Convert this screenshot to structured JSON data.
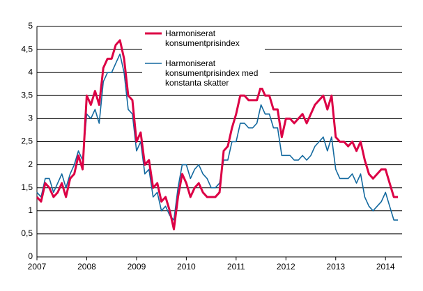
{
  "chart_data": {
    "type": "line",
    "x": [
      2007,
      2007.083,
      2007.167,
      2007.25,
      2007.333,
      2007.417,
      2007.5,
      2007.583,
      2007.667,
      2007.75,
      2007.833,
      2007.917,
      2008,
      2008.083,
      2008.167,
      2008.25,
      2008.333,
      2008.417,
      2008.5,
      2008.583,
      2008.667,
      2008.75,
      2008.833,
      2008.917,
      2009,
      2009.083,
      2009.167,
      2009.25,
      2009.333,
      2009.417,
      2009.5,
      2009.583,
      2009.667,
      2009.75,
      2009.833,
      2009.917,
      2010,
      2010.083,
      2010.167,
      2010.25,
      2010.333,
      2010.417,
      2010.5,
      2010.583,
      2010.667,
      2010.75,
      2010.833,
      2010.917,
      2011,
      2011.083,
      2011.167,
      2011.25,
      2011.333,
      2011.417,
      2011.5,
      2011.583,
      2011.667,
      2011.75,
      2011.833,
      2011.917,
      2012,
      2012.083,
      2012.167,
      2012.25,
      2012.333,
      2012.417,
      2012.5,
      2012.583,
      2012.667,
      2012.75,
      2012.833,
      2012.917,
      2013,
      2013.083,
      2013.167,
      2013.25,
      2013.333,
      2013.417,
      2013.5,
      2013.583,
      2013.667,
      2013.75,
      2013.833,
      2013.917,
      2014,
      2014.083,
      2014.167,
      2014.25
    ],
    "series": [
      {
        "name": "Harmoniserat konsumentprisindex",
        "color": "#dc0045",
        "values": [
          1.3,
          1.2,
          1.6,
          1.5,
          1.3,
          1.4,
          1.6,
          1.3,
          1.7,
          1.8,
          2.2,
          1.9,
          3.5,
          3.3,
          3.6,
          3.3,
          4.1,
          4.3,
          4.3,
          4.6,
          4.7,
          4.3,
          3.5,
          3.4,
          2.5,
          2.7,
          2.0,
          2.1,
          1.5,
          1.6,
          1.2,
          1.3,
          1.0,
          0.6,
          1.3,
          1.8,
          1.6,
          1.3,
          1.5,
          1.6,
          1.4,
          1.3,
          1.3,
          1.3,
          1.4,
          2.3,
          2.4,
          2.8,
          3.1,
          3.5,
          3.5,
          3.4,
          3.4,
          3.4,
          3.7,
          3.5,
          3.5,
          3.2,
          3.2,
          2.6,
          3.0,
          3.0,
          2.9,
          3.0,
          3.1,
          2.9,
          3.1,
          3.3,
          3.4,
          3.5,
          3.2,
          3.5,
          2.6,
          2.5,
          2.5,
          2.4,
          2.5,
          2.3,
          2.5,
          2.1,
          1.8,
          1.7,
          1.8,
          1.9,
          1.9,
          1.6,
          1.3,
          1.3
        ]
      },
      {
        "name": "Harmoniserat konsumentprisindex med konstanta skatter",
        "color": "#13699f",
        "values": [
          1.4,
          1.3,
          1.7,
          1.7,
          1.4,
          1.6,
          1.8,
          1.5,
          1.8,
          2.0,
          2.3,
          2.1,
          3.1,
          3.0,
          3.2,
          2.9,
          3.8,
          4.0,
          4.0,
          4.2,
          4.4,
          4.0,
          3.2,
          3.1,
          2.3,
          2.5,
          1.8,
          1.9,
          1.3,
          1.4,
          1.0,
          1.1,
          0.9,
          0.8,
          1.5,
          2.0,
          2.0,
          1.7,
          1.9,
          2.0,
          1.8,
          1.7,
          1.5,
          1.5,
          1.6,
          2.1,
          2.1,
          2.5,
          2.5,
          2.9,
          2.9,
          2.8,
          2.8,
          2.9,
          3.3,
          3.1,
          3.1,
          2.8,
          2.8,
          2.2,
          2.2,
          2.2,
          2.1,
          2.1,
          2.2,
          2.1,
          2.2,
          2.4,
          2.5,
          2.6,
          2.3,
          2.6,
          1.9,
          1.7,
          1.7,
          1.7,
          1.8,
          1.6,
          1.8,
          1.3,
          1.1,
          1.0,
          1.1,
          1.2,
          1.4,
          1.1,
          0.8,
          0.8
        ]
      }
    ],
    "xlim": [
      2007,
      2014.333
    ],
    "xticks": [
      2007,
      2008,
      2009,
      2010,
      2011,
      2012,
      2013,
      2014
    ],
    "ylim": [
      0,
      5
    ],
    "yticks": [
      0,
      {
        "value": 0.5,
        "label": "0,5"
      },
      1,
      {
        "value": 1.5,
        "label": "1,5"
      },
      2,
      {
        "value": 2.5,
        "label": "2,5"
      },
      3,
      {
        "value": 3.5,
        "label": "3,5"
      },
      4,
      {
        "value": 4.5,
        "label": "4,5"
      },
      5
    ],
    "grid": true
  }
}
